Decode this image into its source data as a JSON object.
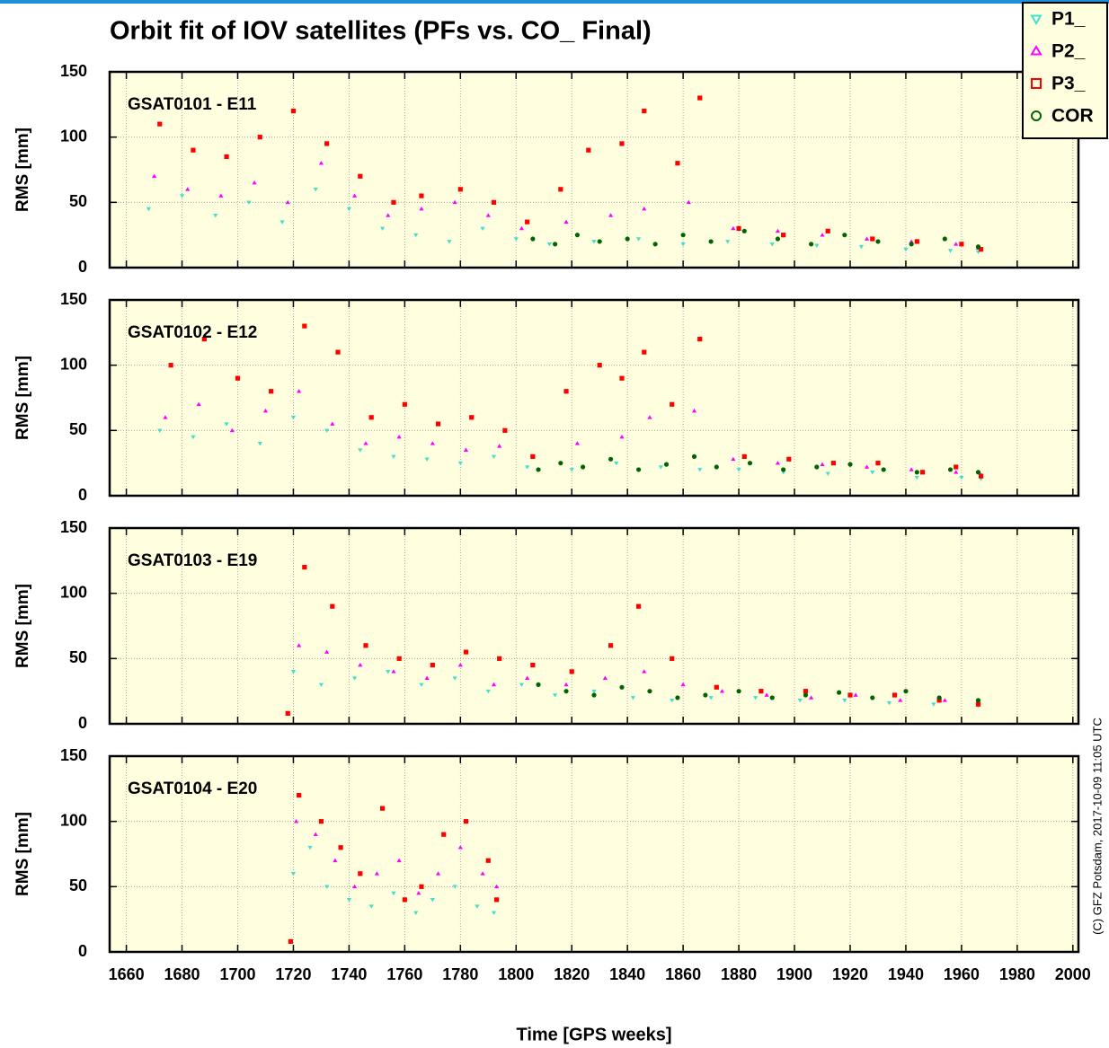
{
  "title": "Orbit fit of IOV satellites (PFs vs. CO_ Final)",
  "credit": "(C) GFZ Potsdam, 2017-10-09 11:05 UTC",
  "chart_data": [
    {
      "type": "scatter",
      "panel_label": "GSAT0101 - E11",
      "y_label": "RMS [mm]",
      "xlim": [
        1654,
        2002
      ],
      "xticks": [
        1660,
        1680,
        1700,
        1720,
        1740,
        1760,
        1780,
        1800,
        1820,
        1840,
        1860,
        1880,
        1900,
        1920,
        1940,
        1960,
        1980,
        2000
      ],
      "ylim": [
        0,
        150
      ],
      "yticks": [
        0,
        50,
        100,
        150
      ],
      "grid": true,
      "series": [
        {
          "name": "P1_",
          "color": "#40e0d0",
          "marker": "triangle-down",
          "x": [
            1668,
            1680,
            1692,
            1704,
            1716,
            1728,
            1740,
            1752,
            1764,
            1776,
            1788,
            1800,
            1812,
            1828,
            1844,
            1860,
            1876,
            1892,
            1908,
            1924,
            1940,
            1956,
            1966
          ],
          "y": [
            45,
            55,
            40,
            50,
            35,
            60,
            45,
            30,
            25,
            20,
            30,
            22,
            18,
            20,
            22,
            18,
            20,
            18,
            17,
            16,
            14,
            13,
            12
          ]
        },
        {
          "name": "P2_",
          "color": "#ff00ff",
          "marker": "triangle-up",
          "x": [
            1670,
            1682,
            1694,
            1706,
            1718,
            1730,
            1742,
            1754,
            1766,
            1778,
            1790,
            1802,
            1818,
            1834,
            1846,
            1862,
            1878,
            1894,
            1910,
            1926,
            1942,
            1958,
            1966
          ],
          "y": [
            70,
            60,
            55,
            65,
            50,
            80,
            55,
            40,
            45,
            50,
            40,
            30,
            35,
            40,
            45,
            50,
            30,
            28,
            25,
            22,
            20,
            18,
            15
          ]
        },
        {
          "name": "P3_",
          "color": "#ff0000",
          "marker": "square",
          "x": [
            1672,
            1684,
            1696,
            1708,
            1720,
            1732,
            1744,
            1756,
            1766,
            1780,
            1792,
            1804,
            1816,
            1826,
            1838,
            1846,
            1858,
            1866,
            1880,
            1896,
            1912,
            1928,
            1944,
            1960,
            1967
          ],
          "y": [
            110,
            90,
            85,
            100,
            120,
            95,
            70,
            50,
            55,
            60,
            50,
            35,
            60,
            90,
            95,
            120,
            80,
            130,
            30,
            25,
            28,
            22,
            20,
            18,
            14
          ]
        },
        {
          "name": "COR",
          "color": "#006400",
          "marker": "circle",
          "x": [
            1806,
            1814,
            1822,
            1830,
            1840,
            1850,
            1860,
            1870,
            1882,
            1894,
            1906,
            1918,
            1930,
            1942,
            1954,
            1966
          ],
          "y": [
            22,
            18,
            25,
            20,
            22,
            18,
            25,
            20,
            28,
            22,
            18,
            25,
            20,
            18,
            22,
            16
          ]
        }
      ]
    },
    {
      "type": "scatter",
      "panel_label": "GSAT0102 - E12",
      "y_label": "RMS [mm]",
      "xlim": [
        1654,
        2002
      ],
      "xticks": [
        1660,
        1680,
        1700,
        1720,
        1740,
        1760,
        1780,
        1800,
        1820,
        1840,
        1860,
        1880,
        1900,
        1920,
        1940,
        1960,
        1980,
        2000
      ],
      "ylim": [
        0,
        150
      ],
      "yticks": [
        0,
        50,
        100,
        150
      ],
      "grid": true,
      "series": [
        {
          "color": "#40e0d0",
          "marker": "triangle-down",
          "x": [
            1672,
            1684,
            1696,
            1708,
            1720,
            1732,
            1744,
            1756,
            1768,
            1780,
            1792,
            1804,
            1820,
            1836,
            1852,
            1866,
            1880,
            1896,
            1912,
            1928,
            1944,
            1960,
            1967
          ],
          "y": [
            50,
            45,
            55,
            40,
            60,
            50,
            35,
            30,
            28,
            25,
            30,
            22,
            20,
            25,
            22,
            20,
            20,
            18,
            17,
            18,
            14,
            14,
            13
          ]
        },
        {
          "color": "#ff00ff",
          "marker": "triangle-up",
          "x": [
            1674,
            1686,
            1698,
            1710,
            1722,
            1734,
            1746,
            1758,
            1770,
            1782,
            1794,
            1806,
            1822,
            1838,
            1848,
            1864,
            1878,
            1894,
            1910,
            1926,
            1942,
            1958,
            1967
          ],
          "y": [
            60,
            70,
            50,
            65,
            80,
            55,
            40,
            45,
            40,
            35,
            38,
            30,
            40,
            45,
            60,
            65,
            28,
            25,
            24,
            22,
            20,
            18,
            16
          ]
        },
        {
          "color": "#ff0000",
          "marker": "square",
          "x": [
            1676,
            1688,
            1700,
            1712,
            1724,
            1736,
            1748,
            1760,
            1772,
            1784,
            1796,
            1806,
            1818,
            1830,
            1838,
            1846,
            1856,
            1866,
            1882,
            1898,
            1914,
            1930,
            1946,
            1958,
            1967
          ],
          "y": [
            100,
            120,
            90,
            80,
            130,
            110,
            60,
            70,
            55,
            60,
            50,
            30,
            80,
            100,
            90,
            110,
            70,
            120,
            30,
            28,
            25,
            25,
            18,
            22,
            15
          ]
        },
        {
          "color": "#006400",
          "marker": "circle",
          "x": [
            1808,
            1816,
            1824,
            1834,
            1844,
            1854,
            1864,
            1872,
            1884,
            1896,
            1908,
            1920,
            1932,
            1944,
            1956,
            1966
          ],
          "y": [
            20,
            25,
            22,
            28,
            20,
            24,
            30,
            22,
            25,
            20,
            22,
            24,
            20,
            18,
            20,
            18
          ]
        }
      ]
    },
    {
      "type": "scatter",
      "panel_label": "GSAT0103 - E19",
      "y_label": "RMS [mm]",
      "xlim": [
        1654,
        2002
      ],
      "xticks": [
        1660,
        1680,
        1700,
        1720,
        1740,
        1760,
        1780,
        1800,
        1820,
        1840,
        1860,
        1880,
        1900,
        1920,
        1940,
        1960,
        1980,
        2000
      ],
      "ylim": [
        0,
        150
      ],
      "yticks": [
        0,
        50,
        100,
        150
      ],
      "grid": true,
      "series": [
        {
          "color": "#40e0d0",
          "marker": "triangle-down",
          "x": [
            1720,
            1730,
            1742,
            1754,
            1766,
            1778,
            1790,
            1802,
            1814,
            1828,
            1842,
            1856,
            1870,
            1886,
            1902,
            1918,
            1934,
            1950,
            1966
          ],
          "y": [
            40,
            30,
            35,
            40,
            30,
            35,
            25,
            30,
            22,
            25,
            20,
            18,
            20,
            20,
            18,
            18,
            16,
            15,
            14
          ]
        },
        {
          "color": "#ff00ff",
          "marker": "triangle-up",
          "x": [
            1722,
            1732,
            1744,
            1756,
            1768,
            1780,
            1792,
            1804,
            1818,
            1832,
            1846,
            1860,
            1874,
            1890,
            1906,
            1922,
            1938,
            1954,
            1966
          ],
          "y": [
            60,
            55,
            45,
            40,
            35,
            45,
            30,
            35,
            30,
            35,
            40,
            30,
            25,
            22,
            20,
            22,
            18,
            18,
            15
          ]
        },
        {
          "color": "#ff0000",
          "marker": "square",
          "x": [
            1718,
            1724,
            1734,
            1746,
            1758,
            1770,
            1782,
            1794,
            1806,
            1820,
            1834,
            1844,
            1856,
            1872,
            1888,
            1904,
            1920,
            1936,
            1952,
            1966
          ],
          "y": [
            8,
            120,
            90,
            60,
            50,
            45,
            55,
            50,
            45,
            40,
            60,
            90,
            50,
            28,
            25,
            25,
            22,
            22,
            18,
            15
          ]
        },
        {
          "color": "#006400",
          "marker": "circle",
          "x": [
            1808,
            1818,
            1828,
            1838,
            1848,
            1858,
            1868,
            1880,
            1892,
            1904,
            1916,
            1928,
            1940,
            1952,
            1966
          ],
          "y": [
            30,
            25,
            22,
            28,
            25,
            20,
            22,
            25,
            20,
            22,
            24,
            20,
            25,
            20,
            18
          ]
        }
      ]
    },
    {
      "type": "scatter",
      "panel_label": "GSAT0104 - E20",
      "y_label": "RMS [mm]",
      "x_label": "Time [GPS weeks]",
      "xlim": [
        1654,
        2002
      ],
      "xticks": [
        1660,
        1680,
        1700,
        1720,
        1740,
        1760,
        1780,
        1800,
        1820,
        1840,
        1860,
        1880,
        1900,
        1920,
        1940,
        1960,
        1980,
        2000
      ],
      "ylim": [
        0,
        150
      ],
      "yticks": [
        0,
        50,
        100,
        150
      ],
      "grid": true,
      "series": [
        {
          "color": "#40e0d0",
          "marker": "triangle-down",
          "x": [
            1720,
            1726,
            1732,
            1740,
            1748,
            1756,
            1764,
            1770,
            1778,
            1786,
            1792
          ],
          "y": [
            60,
            80,
            50,
            40,
            35,
            45,
            30,
            40,
            50,
            35,
            30
          ]
        },
        {
          "color": "#ff00ff",
          "marker": "triangle-up",
          "x": [
            1721,
            1728,
            1735,
            1742,
            1750,
            1758,
            1765,
            1772,
            1780,
            1788,
            1793
          ],
          "y": [
            100,
            90,
            70,
            50,
            60,
            70,
            45,
            60,
            80,
            60,
            50
          ]
        },
        {
          "color": "#ff0000",
          "marker": "square",
          "x": [
            1719,
            1722,
            1730,
            1737,
            1744,
            1752,
            1760,
            1766,
            1774,
            1782,
            1790,
            1793
          ],
          "y": [
            8,
            120,
            100,
            80,
            60,
            110,
            40,
            50,
            90,
            100,
            70,
            40
          ]
        }
      ]
    }
  ]
}
